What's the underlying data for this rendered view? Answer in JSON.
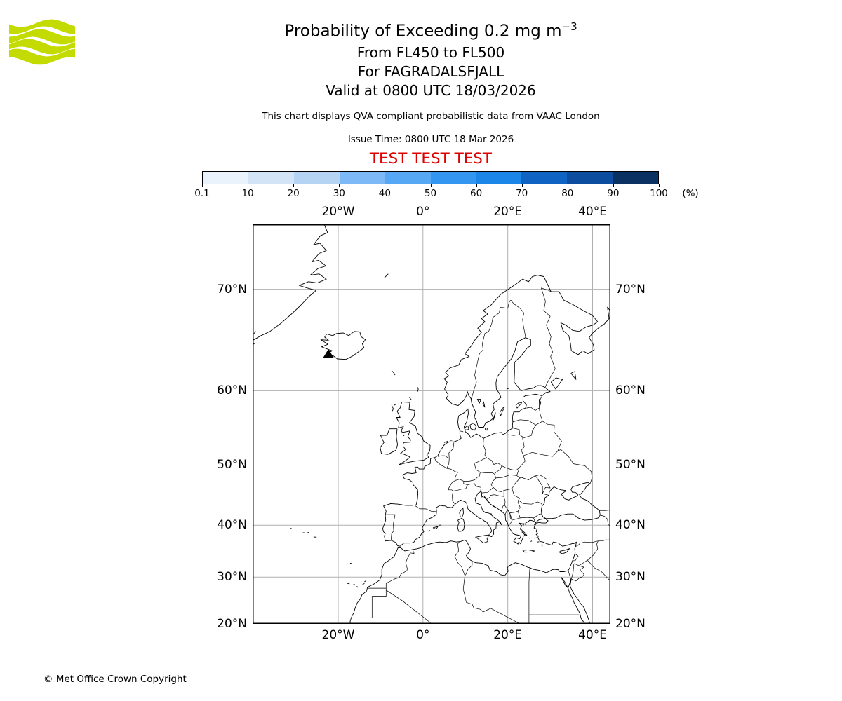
{
  "logo": {
    "brand": "Met Office",
    "green": "#c3db00",
    "text_color": "#2b2b33"
  },
  "header": {
    "title": "Probability of Exceeding 0.2 mg m",
    "title_sup": "−3",
    "subtitle_flight_level": "From FL450 to FL500",
    "subtitle_volcano": "For FAGRADALSFJALL",
    "subtitle_valid": "Valid at 0800 UTC 18/03/2026",
    "description": "This chart displays QVA compliant probabilistic data from VAAC London",
    "issue_time": "Issue Time: 0800 UTC 18 Mar 2026",
    "test_banner": "TEST TEST TEST",
    "test_color": "#dd0000"
  },
  "colorbar": {
    "unit": "(%)",
    "tick_labels": [
      "0.1",
      "10",
      "20",
      "30",
      "40",
      "50",
      "60",
      "70",
      "80",
      "90",
      "100"
    ],
    "segment_colors": [
      "#eaf2fb",
      "#d3e4f7",
      "#b5d4f3",
      "#7db8f7",
      "#56a8f4",
      "#3397f1",
      "#1c85e8",
      "#0f63c3",
      "#0c4da0",
      "#0a3161"
    ]
  },
  "map": {
    "projection": "mercator",
    "extent": {
      "lon_min": -40.2,
      "lon_max": 44.2,
      "lat_min": 20,
      "lat_max": 74.6
    },
    "lon_ticks": [
      {
        "label": "20°W",
        "lon": -20
      },
      {
        "label": "0°",
        "lon": 0
      },
      {
        "label": "20°E",
        "lon": 20
      },
      {
        "label": "40°E",
        "lon": 40
      }
    ],
    "lat_ticks": [
      {
        "label": "70°N",
        "lat": 70
      },
      {
        "label": "60°N",
        "lat": 60
      },
      {
        "label": "50°N",
        "lat": 50
      },
      {
        "label": "40°N",
        "lat": 40
      },
      {
        "label": "30°N",
        "lat": 30
      },
      {
        "label": "20°N",
        "lat": 20
      }
    ],
    "grid_color": "#b0b0b0",
    "coast_color": "#000000",
    "volcano_marker": {
      "name": "FAGRADALSFJALL",
      "lon": -22.3,
      "lat": 64.0
    }
  },
  "footer": {
    "copyright": "© Met Office Crown Copyright"
  }
}
